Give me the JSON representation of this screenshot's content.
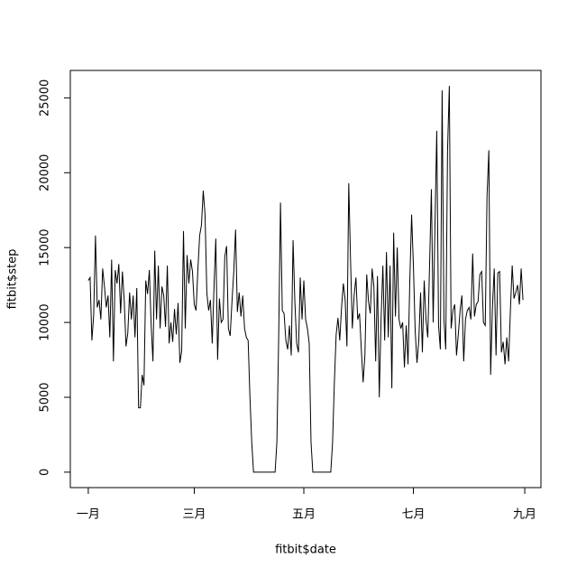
{
  "chart_data": {
    "type": "line",
    "xlabel": "fitbit$date",
    "ylabel": "fitbit$step",
    "color": "#000000",
    "xlim": [
      -10,
      252
    ],
    "ylim": [
      -1032,
      26832
    ],
    "xticks": [
      {
        "value": 0,
        "label": "一月"
      },
      {
        "value": 59,
        "label": "三月"
      },
      {
        "value": 120,
        "label": "五月"
      },
      {
        "value": 181,
        "label": "七月"
      },
      {
        "value": 243,
        "label": "九月"
      }
    ],
    "yticks": [
      0,
      5000,
      10000,
      15000,
      20000,
      25000
    ],
    "x": [
      0,
      1,
      2,
      3,
      4,
      5,
      6,
      7,
      8,
      9,
      10,
      11,
      12,
      13,
      14,
      15,
      16,
      17,
      18,
      19,
      20,
      21,
      22,
      23,
      24,
      25,
      26,
      27,
      28,
      29,
      30,
      31,
      32,
      33,
      34,
      35,
      36,
      37,
      38,
      39,
      40,
      41,
      42,
      43,
      44,
      45,
      46,
      47,
      48,
      49,
      50,
      51,
      52,
      53,
      54,
      55,
      56,
      57,
      58,
      59,
      60,
      61,
      62,
      63,
      64,
      65,
      66,
      67,
      68,
      69,
      70,
      71,
      72,
      73,
      74,
      75,
      76,
      77,
      78,
      79,
      80,
      81,
      82,
      83,
      84,
      85,
      86,
      87,
      88,
      89,
      90,
      91,
      92,
      93,
      94,
      95,
      96,
      97,
      98,
      99,
      100,
      101,
      102,
      103,
      104,
      105,
      106,
      107,
      108,
      109,
      110,
      111,
      112,
      113,
      114,
      115,
      116,
      117,
      118,
      119,
      120,
      121,
      122,
      123,
      124,
      125,
      126,
      127,
      128,
      129,
      130,
      131,
      132,
      133,
      134,
      135,
      136,
      137,
      138,
      139,
      140,
      141,
      142,
      143,
      144,
      145,
      146,
      147,
      148,
      149,
      150,
      151,
      152,
      153,
      154,
      155,
      156,
      157,
      158,
      159,
      160,
      161,
      162,
      163,
      164,
      165,
      166,
      167,
      168,
      169,
      170,
      171,
      172,
      173,
      174,
      175,
      176,
      177,
      178,
      179,
      180,
      181,
      182,
      183,
      184,
      185,
      186,
      187,
      188,
      189,
      190,
      191,
      192,
      193,
      194,
      195,
      196,
      197,
      198,
      199,
      200,
      201,
      202,
      203,
      204,
      205,
      206,
      207,
      208,
      209,
      210,
      211,
      212,
      213,
      214,
      215,
      216,
      217,
      218,
      219,
      220,
      221,
      222,
      223,
      224,
      225,
      226,
      227,
      228,
      229,
      230,
      231,
      232,
      233,
      234,
      235,
      236,
      237,
      238,
      239,
      240,
      241,
      242
    ],
    "values": [
      12800,
      13000,
      8800,
      10500,
      15800,
      11000,
      11500,
      10200,
      13600,
      12400,
      11000,
      11800,
      9000,
      14200,
      7400,
      13500,
      12600,
      13900,
      10600,
      13400,
      11500,
      8400,
      9300,
      12000,
      10200,
      11800,
      9000,
      12300,
      4300,
      4300,
      6500,
      5800,
      12800,
      11900,
      13500,
      9800,
      7400,
      14800,
      10200,
      13800,
      9600,
      12400,
      11800,
      9700,
      13800,
      8600,
      10000,
      8700,
      10900,
      9200,
      11300,
      7300,
      8100,
      16100,
      9600,
      14500,
      12600,
      14200,
      13400,
      11200,
      10800,
      13500,
      15800,
      16500,
      18800,
      17200,
      12000,
      10800,
      11500,
      8600,
      12400,
      15600,
      7500,
      11600,
      10000,
      10200,
      14400,
      15100,
      9600,
      9100,
      11400,
      13400,
      16200,
      10700,
      12000,
      10400,
      11800,
      9600,
      9000,
      8800,
      5000,
      2000,
      0,
      0,
      0,
      0,
      0,
      0,
      0,
      0,
      0,
      0,
      0,
      0,
      0,
      2000,
      9000,
      18000,
      10800,
      10600,
      8800,
      8200,
      9800,
      7800,
      15500,
      11400,
      8600,
      8000,
      13000,
      10200,
      12800,
      10200,
      9600,
      8600,
      2000,
      0,
      0,
      0,
      0,
      0,
      0,
      0,
      0,
      0,
      0,
      0,
      2000,
      6000,
      9200,
      10300,
      8800,
      11000,
      12600,
      11500,
      8400,
      19300,
      14200,
      9600,
      11800,
      13000,
      10200,
      10600,
      8200,
      6000,
      7800,
      13200,
      11400,
      10600,
      13600,
      12400,
      7400,
      13100,
      5000,
      10200,
      13800,
      8800,
      14700,
      9000,
      13800,
      5600,
      16000,
      10400,
      15000,
      10200,
      9600,
      10000,
      7000,
      9800,
      7200,
      12800,
      17200,
      13800,
      9400,
      7300,
      8800,
      12000,
      8000,
      12800,
      10200,
      9000,
      13800,
      18900,
      10000,
      16400,
      22800,
      9800,
      8200,
      25500,
      10200,
      8200,
      21500,
      25800,
      9600,
      10800,
      11200,
      7800,
      9200,
      10800,
      11800,
      7400,
      10200,
      10800,
      11000,
      10200,
      14600,
      10400,
      11200,
      11400,
      13200,
      13400,
      10000,
      9800,
      18500,
      21500,
      6500,
      11000,
      13600,
      7800,
      13300,
      13400,
      8000,
      8700,
      7200,
      9000,
      7400,
      10800,
      13800,
      11600,
      12000,
      12500,
      11200,
      13600,
      11500
    ]
  }
}
